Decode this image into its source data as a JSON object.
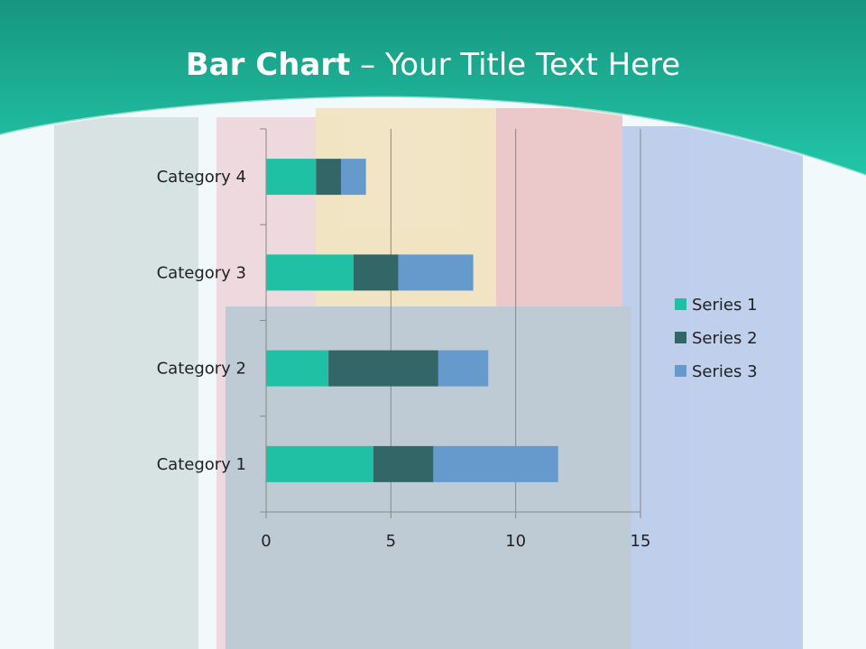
{
  "slide": {
    "title_bold": "Bar Chart",
    "title_rest": " – Your Title Text Here"
  },
  "colors": {
    "header": "#1fbfa4",
    "series": [
      "#20c0a4",
      "#336666",
      "#6699cc"
    ]
  },
  "chart_data": {
    "type": "bar",
    "orientation": "horizontal",
    "stacked": true,
    "categories": [
      "Category 1",
      "Category 2",
      "Category 3",
      "Category 4"
    ],
    "series": [
      {
        "name": "Series 1",
        "values": [
          4.3,
          2.5,
          3.5,
          2
        ]
      },
      {
        "name": "Series 2",
        "values": [
          2.4,
          4.4,
          1.8,
          1
        ]
      },
      {
        "name": "Series 3",
        "values": [
          5,
          2,
          3,
          1
        ]
      }
    ],
    "xlim": [
      0,
      15
    ],
    "xticks": [
      "0",
      "5",
      "10",
      "15"
    ],
    "grid": "vertical",
    "legend": "right"
  }
}
